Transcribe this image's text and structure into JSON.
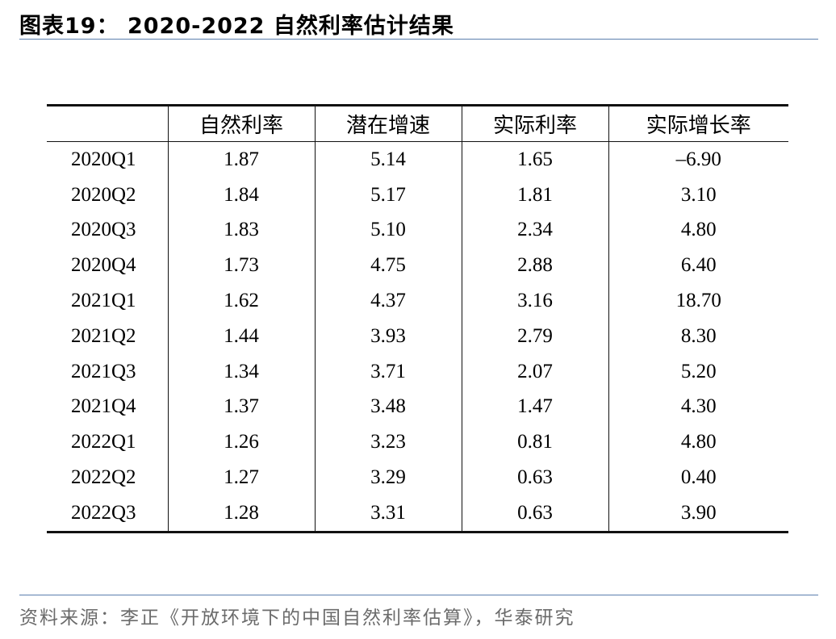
{
  "title": "图表19：  2020-2022 自然利率估计结果",
  "table": {
    "headers": [
      "",
      "自然利率",
      "潜在增速",
      "实际利率",
      "实际增长率"
    ],
    "rows": [
      [
        "2020Q1",
        "1.87",
        "5.14",
        "1.65",
        "–6.90"
      ],
      [
        "2020Q2",
        "1.84",
        "5.17",
        "1.81",
        "3.10"
      ],
      [
        "2020Q3",
        "1.83",
        "5.10",
        "2.34",
        "4.80"
      ],
      [
        "2020Q4",
        "1.73",
        "4.75",
        "2.88",
        "6.40"
      ],
      [
        "2021Q1",
        "1.62",
        "4.37",
        "3.16",
        "18.70"
      ],
      [
        "2021Q2",
        "1.44",
        "3.93",
        "2.79",
        "8.30"
      ],
      [
        "2021Q3",
        "1.34",
        "3.71",
        "2.07",
        "5.20"
      ],
      [
        "2021Q4",
        "1.37",
        "3.48",
        "1.47",
        "4.30"
      ],
      [
        "2022Q1",
        "1.26",
        "3.23",
        "0.81",
        "4.80"
      ],
      [
        "2022Q2",
        "1.27",
        "3.29",
        "0.63",
        "0.40"
      ],
      [
        "2022Q3",
        "1.28",
        "3.31",
        "0.63",
        "3.90"
      ]
    ]
  },
  "source": "资料来源：李正《开放环境下的中国自然利率估算》，华泰研究",
  "colors": {
    "rule": "#5b7fad",
    "source_text": "#6b6b6b",
    "table_lines": "#111111"
  }
}
